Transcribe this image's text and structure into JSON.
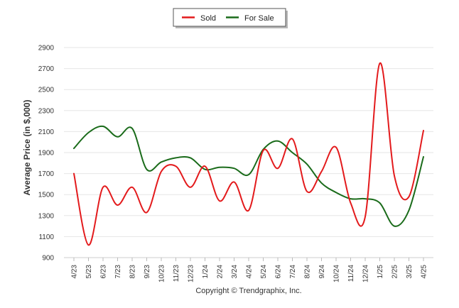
{
  "chart_data": {
    "type": "line",
    "title": "",
    "xlabel": "",
    "ylabel": "Average Price (in $,000)",
    "ylim": [
      900,
      2900
    ],
    "yticks": [
      900,
      1100,
      1300,
      1500,
      1700,
      1900,
      2100,
      2300,
      2500,
      2700,
      2900
    ],
    "grid": true,
    "legend_position": "top-center",
    "categories": [
      "4/23",
      "5/23",
      "6/23",
      "7/23",
      "8/23",
      "9/23",
      "10/23",
      "11/23",
      "12/23",
      "1/24",
      "2/24",
      "3/24",
      "4/24",
      "5/24",
      "6/24",
      "7/24",
      "8/24",
      "9/24",
      "10/24",
      "11/24",
      "12/24",
      "1/25",
      "2/25",
      "3/25",
      "4/25"
    ],
    "series": [
      {
        "name": "Sold",
        "color": "#e31a1c",
        "values": [
          1700,
          1020,
          1570,
          1400,
          1570,
          1330,
          1720,
          1770,
          1570,
          1770,
          1440,
          1620,
          1350,
          1920,
          1750,
          2030,
          1530,
          1720,
          1950,
          1420,
          1290,
          2750,
          1680,
          1480,
          2110
        ]
      },
      {
        "name": "For Sale",
        "color": "#1a6b1a",
        "values": [
          1940,
          2090,
          2150,
          2050,
          2130,
          1740,
          1810,
          1850,
          1850,
          1740,
          1760,
          1750,
          1690,
          1930,
          2010,
          1900,
          1790,
          1610,
          1520,
          1460,
          1460,
          1420,
          1200,
          1350,
          1860
        ]
      }
    ],
    "copyright": "Copyright © Trendgraphix, Inc."
  }
}
